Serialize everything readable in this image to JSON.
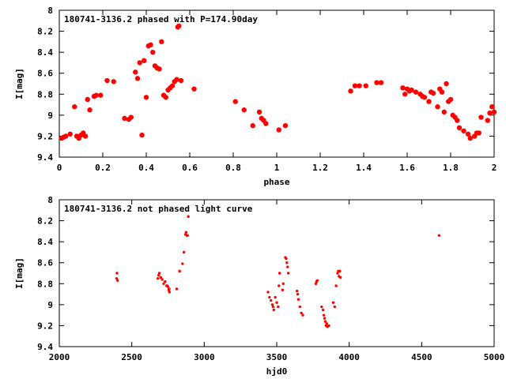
{
  "chart_data": [
    {
      "type": "scatter",
      "title": "180741-3136.2 phased with P=174.90day",
      "xlabel": "phase",
      "ylabel": "I[mag]",
      "xlim": [
        0,
        2
      ],
      "ylim": [
        9.4,
        8.0
      ],
      "y_inverted": true,
      "xticks": [
        "0",
        "0.2",
        "0.4",
        "0.6",
        "0.8",
        "1",
        "1.2",
        "1.4",
        "1.6",
        "1.8",
        "2"
      ],
      "yticks": [
        "8",
        "8.2",
        "8.4",
        "8.6",
        "8.8",
        "9",
        "9.2",
        "9.4"
      ],
      "grid": false,
      "marker_color": "#ff0000",
      "x": [
        0.01,
        0.02,
        0.03,
        0.05,
        0.07,
        0.08,
        0.09,
        0.1,
        0.11,
        0.12,
        0.13,
        0.14,
        0.16,
        0.17,
        0.19,
        0.22,
        0.25,
        0.3,
        0.32,
        0.33,
        0.35,
        0.36,
        0.37,
        0.38,
        0.39,
        0.4,
        0.41,
        0.42,
        0.43,
        0.44,
        0.45,
        0.46,
        0.47,
        0.48,
        0.49,
        0.5,
        0.51,
        0.52,
        0.53,
        0.54,
        0.545,
        0.55,
        0.56,
        0.62,
        0.81,
        0.85,
        0.89,
        0.92,
        0.93,
        0.94,
        0.95,
        1.01,
        1.04,
        1.34,
        1.36,
        1.38,
        1.41,
        1.46,
        1.48,
        1.58,
        1.59,
        1.6,
        1.61,
        1.62,
        1.64,
        1.66,
        1.67,
        1.68,
        1.7,
        1.71,
        1.72,
        1.74,
        1.75,
        1.76,
        1.77,
        1.78,
        1.79,
        1.8,
        1.81,
        1.82,
        1.83,
        1.84,
        1.86,
        1.88,
        1.89,
        1.91,
        1.92,
        1.93,
        1.94,
        1.97,
        1.98,
        1.99,
        2.0
      ],
      "y": [
        9.22,
        9.21,
        9.2,
        9.18,
        8.92,
        9.2,
        9.22,
        9.19,
        9.17,
        9.2,
        8.85,
        8.95,
        8.82,
        8.81,
        8.81,
        8.67,
        8.68,
        9.03,
        9.04,
        9.02,
        8.59,
        8.65,
        8.5,
        9.19,
        8.48,
        8.83,
        8.34,
        8.33,
        8.4,
        8.53,
        8.55,
        8.56,
        8.3,
        8.81,
        8.83,
        8.76,
        8.74,
        8.72,
        8.68,
        8.66,
        8.16,
        8.15,
        8.67,
        8.75,
        8.87,
        8.95,
        9.1,
        8.97,
        9.03,
        9.05,
        9.08,
        9.14,
        9.1,
        8.77,
        8.72,
        8.72,
        8.72,
        8.69,
        8.69,
        8.74,
        8.8,
        8.75,
        8.77,
        8.76,
        8.78,
        8.8,
        8.82,
        8.83,
        8.87,
        8.78,
        8.79,
        8.92,
        8.75,
        8.78,
        8.97,
        8.7,
        8.87,
        8.85,
        9.0,
        9.02,
        9.05,
        9.12,
        9.15,
        9.18,
        9.22,
        9.2,
        9.17,
        9.17,
        9.02,
        9.05,
        8.98,
        8.92,
        8.97
      ]
    },
    {
      "type": "scatter",
      "title": "180741-3136.2 not phased light curve",
      "xlabel": "hjd0",
      "ylabel": "I[mag]",
      "xlim": [
        2000,
        5000
      ],
      "ylim": [
        9.4,
        8.0
      ],
      "y_inverted": true,
      "xticks": [
        "2000",
        "2500",
        "3000",
        "3500",
        "4000",
        "4500",
        "5000"
      ],
      "yticks": [
        "8",
        "8.2",
        "8.4",
        "8.6",
        "8.8",
        "9",
        "9.2",
        "9.4"
      ],
      "grid": false,
      "marker_color": "#ff0000",
      "x": [
        2395,
        2398,
        2402,
        2680,
        2685,
        2690,
        2700,
        2710,
        2720,
        2730,
        2740,
        2745,
        2750,
        2755,
        2758,
        2760,
        2810,
        2830,
        2850,
        2860,
        2870,
        2875,
        2880,
        2885,
        2890,
        3440,
        3450,
        3460,
        3470,
        3475,
        3480,
        3490,
        3500,
        3510,
        3515,
        3520,
        3540,
        3545,
        3560,
        3565,
        3570,
        3575,
        3580,
        3640,
        3645,
        3650,
        3660,
        3670,
        3680,
        3770,
        3775,
        3780,
        3810,
        3820,
        3825,
        3830,
        3835,
        3840,
        3845,
        3850,
        3860,
        3890,
        3900,
        3910,
        3920,
        3925,
        3930,
        3935,
        3940,
        4620
      ],
      "y": [
        8.75,
        8.7,
        8.77,
        8.75,
        8.72,
        8.7,
        8.74,
        8.76,
        8.8,
        8.78,
        8.82,
        8.82,
        8.83,
        8.86,
        8.85,
        8.88,
        8.85,
        8.68,
        8.61,
        8.5,
        8.33,
        8.31,
        8.34,
        8.34,
        8.16,
        8.88,
        8.93,
        8.96,
        9.0,
        9.02,
        9.05,
        8.93,
        8.98,
        9.02,
        8.82,
        8.7,
        8.86,
        8.8,
        8.55,
        8.56,
        8.6,
        8.64,
        8.7,
        8.87,
        8.9,
        8.95,
        9.02,
        9.08,
        9.1,
        8.8,
        8.78,
        8.77,
        9.02,
        9.05,
        9.1,
        9.13,
        9.16,
        9.2,
        9.18,
        9.21,
        9.2,
        8.98,
        9.02,
        8.82,
        8.7,
        8.68,
        8.73,
        8.68,
        8.74,
        8.34
      ]
    }
  ]
}
